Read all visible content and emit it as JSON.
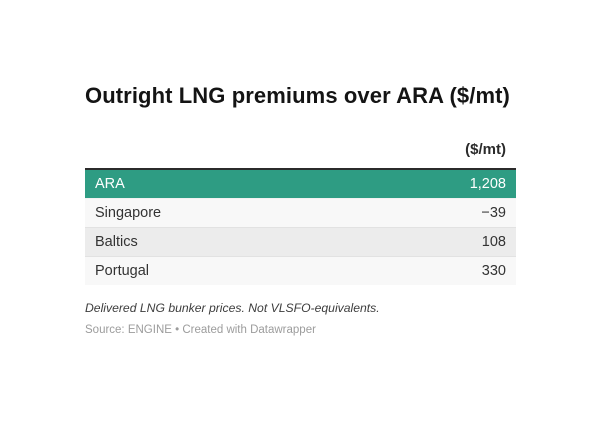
{
  "title": "Outright LNG premiums over ARA ($/mt)",
  "table": {
    "value_header": "($/mt)",
    "rows": [
      {
        "label": "ARA",
        "value": "1,208",
        "highlight": true
      },
      {
        "label": "Singapore",
        "value": "−39",
        "highlight": false
      },
      {
        "label": "Baltics",
        "value": "108",
        "highlight": false
      },
      {
        "label": "Portugal",
        "value": "330",
        "highlight": false
      }
    ]
  },
  "notes": "Delivered LNG bunker prices. Not VLSFO-equivalents.",
  "source": "Source: ENGINE • Created with Datawrapper",
  "colors": {
    "highlight_row": "#2e9c83",
    "header_border": "#2b2b2b"
  },
  "chart_data": {
    "type": "table",
    "title": "Outright LNG premiums over ARA ($/mt)",
    "columns": [
      "",
      "($/mt)"
    ],
    "categories": [
      "ARA",
      "Singapore",
      "Baltics",
      "Portugal"
    ],
    "values": [
      1208,
      -39,
      108,
      330
    ],
    "highlighted_row": "ARA",
    "notes": "Delivered LNG bunker prices. Not VLSFO-equivalents.",
    "source": "Source: ENGINE • Created with Datawrapper"
  }
}
